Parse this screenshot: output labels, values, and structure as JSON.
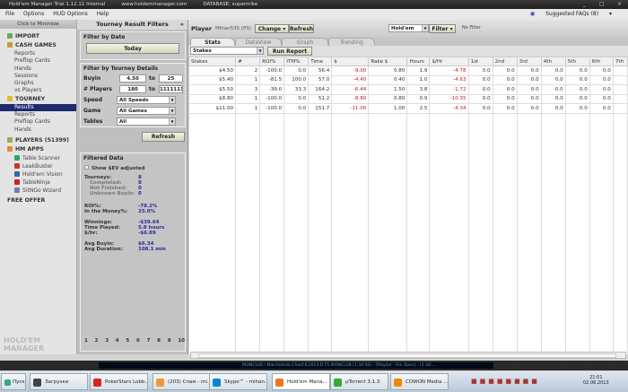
{
  "window": {
    "title": "Hold'em Manager Trial 1.12.11 Internal",
    "url": "www.holdemmanager.com",
    "database": "DATABASE: supermike",
    "min": "_",
    "max": "□",
    "close": "×"
  },
  "menu": [
    "File",
    "Options",
    "HUD Options",
    "Help"
  ],
  "faq": "Suggested FAQs (8)",
  "sidebar": {
    "minimize": "Click to Minimize",
    "import": "IMPORT",
    "cash_games": "CASH GAMES",
    "cash_items": [
      "Reports",
      "Preflop Cards",
      "Hands",
      "Sessions",
      "Graphs",
      "vs Players"
    ],
    "tourney": "TOURNEY",
    "tourney_items": [
      "Results",
      "Reports",
      "Preflop Cards",
      "Hands"
    ],
    "players": "PLAYERS (51399)",
    "hm_apps": "HM APPS",
    "apps": [
      "Table Scanner",
      "LeakBuster",
      "Hold'em Vision",
      "TableNinja",
      "SitNGo Wizard"
    ],
    "free_offer": "FREE OFFER"
  },
  "filters": {
    "title": "Tourney Result Filters",
    "by_date": "Filter by Date",
    "today": "Today",
    "by_details": "Filter by Tourney Details",
    "buyin_label": "Buyin",
    "buyin_from": "4.50",
    "buyin_to": "25",
    "to": "to",
    "players_label": "# Players",
    "players_from": "180",
    "players_to": "1111111",
    "speed_label": "Speed",
    "speed": "All Speeds",
    "game_label": "Game",
    "game": "All Games",
    "tables_label": "Tables",
    "tables": "All",
    "refresh": "Refresh",
    "filtered_title": "Filtered Data",
    "ev": "Show $EV adjusted",
    "stats": [
      [
        "Tourneys:",
        "8"
      ],
      [
        "Completed:",
        "8"
      ],
      [
        "Not Finished:",
        "0"
      ],
      [
        "Unknown Buyin:",
        "0"
      ],
      [
        "ROI%:",
        "-78.2%"
      ],
      [
        "In the Money%:",
        "25.0%"
      ],
      [
        "Winnings:",
        "-$39.64"
      ],
      [
        "Time Played:",
        "5.8 hours"
      ],
      [
        "$/hr:",
        "-$6.89"
      ],
      [
        "Avg Buyin:",
        "$6.34"
      ],
      [
        "Avg Duration:",
        "108.1 min"
      ]
    ],
    "pages": [
      "1",
      "2",
      "3",
      "4",
      "5",
      "6",
      "7",
      "8",
      "9",
      "10"
    ]
  },
  "main": {
    "player_label": "Player",
    "player": "Mihan535 (PS)",
    "change": "Change",
    "refresh": "Refresh",
    "game": "Hold'em",
    "filter": "Filter",
    "no_filter": "No Filter",
    "tabs": [
      "Stats",
      "DataView",
      "Graph",
      "Trending"
    ],
    "report": "Stakes",
    "run_report": "Run Report",
    "columns": [
      "Stakes",
      "#",
      "ROI%",
      "ITM%",
      "Time",
      "$",
      "Rake $",
      "Hours",
      "$/Hr",
      "1st",
      "2nd",
      "3rd",
      "4th",
      "5th",
      "6th",
      "7th"
    ],
    "rows": [
      [
        "$4.50",
        "2",
        "-100.0",
        "0.0",
        "56.4",
        "-9.00",
        "0.80",
        "1.9",
        "-4.78",
        "0.0",
        "0.0",
        "0.0",
        "0.0",
        "0.0",
        "0.0",
        ""
      ],
      [
        "$5.40",
        "1",
        "-81.5",
        "100.0",
        "57.0",
        "-4.40",
        "0.40",
        "1.0",
        "-4.63",
        "0.0",
        "0.0",
        "0.0",
        "0.0",
        "0.0",
        "0.0",
        ""
      ],
      [
        "$5.50",
        "3",
        "-39.0",
        "33.3",
        "164.2",
        "-6.44",
        "1.50",
        "3.8",
        "-1.72",
        "0.0",
        "0.0",
        "0.0",
        "0.0",
        "0.0",
        "0.0",
        ""
      ],
      [
        "$8.80",
        "1",
        "-100.0",
        "0.0",
        "51.2",
        "-8.80",
        "0.80",
        "0.9",
        "-10.35",
        "0.0",
        "0.0",
        "0.0",
        "0.0",
        "0.0",
        "0.0",
        ""
      ],
      [
        "$11.00",
        "1",
        "-100.0",
        "0.0",
        "151.7",
        "-11.00",
        "1.00",
        "2.5",
        "-4.34",
        "0.0",
        "0.0",
        "0.0",
        "0.0",
        "0.0",
        "0.0",
        ""
      ]
    ]
  },
  "media": "IRONCLUB / Malchishnik.Chast'8.2013.D.TS.IRONCLUB [1:34:56] - [Playlist - File Open] - [1:34:...",
  "taskbar": {
    "start": "Пуск",
    "tasks": [
      "Загрузки",
      "PokerStars Lobb...",
      "(203) Спам - mi...",
      "Skype™ - mihan...",
      "Hold'em Mana...",
      "µTorrent 3.1.3",
      "COWON Media ..."
    ],
    "time": "21:01",
    "date": "02.06.2013"
  },
  "colors": {
    "selection": "#1e2a6e",
    "negative": "#c02020",
    "value": "#2a2a9a"
  }
}
